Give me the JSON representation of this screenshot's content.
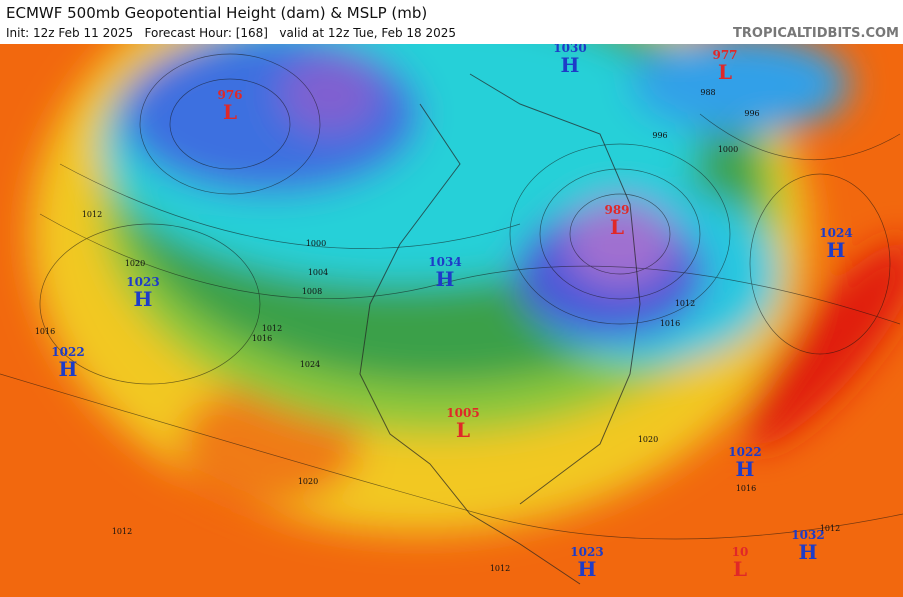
{
  "header": {
    "title": "ECMWF 500mb Geopotential Height (dam) & MSLP (mb)",
    "subtitle": "Init: 12z Feb 11 2025   Forecast Hour: [168]   valid at 12z Tue, Feb 18 2025",
    "site": "TROPICALTIDBITS.COM"
  },
  "pressure_centers": [
    {
      "value": "976",
      "symbol": "L"
    },
    {
      "value": "1030",
      "symbol": "H"
    },
    {
      "value": "977",
      "symbol": "L"
    },
    {
      "value": "989",
      "symbol": "L"
    },
    {
      "value": "1024",
      "symbol": "H"
    },
    {
      "value": "1023",
      "symbol": "H"
    },
    {
      "value": "1022",
      "symbol": "H"
    },
    {
      "value": "1034",
      "symbol": "H"
    },
    {
      "value": "1005",
      "symbol": "L"
    },
    {
      "value": "1022",
      "symbol": "H"
    },
    {
      "value": "1023",
      "symbol": "H"
    },
    {
      "value": "1032",
      "symbol": "H"
    },
    {
      "value": "10",
      "symbol": "L"
    }
  ],
  "isobar_labels": [
    "1012",
    "1020",
    "1016",
    "1024",
    "1012",
    "1016",
    "1008",
    "1004",
    "1000",
    "1020",
    "1016",
    "1012",
    "996",
    "1000",
    "988",
    "996",
    "1012",
    "1016",
    "1020",
    "1012",
    "1012"
  ]
}
